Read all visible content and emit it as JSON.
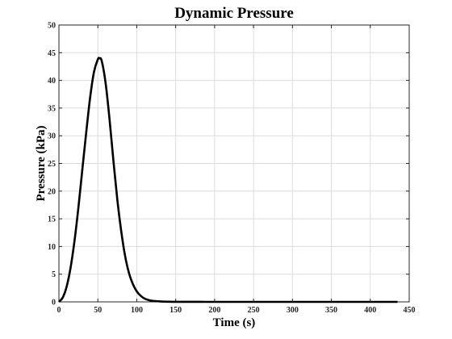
{
  "chart_data": {
    "type": "line",
    "title": "Dynamic Pressure",
    "xlabel": "Time (s)",
    "ylabel": "Pressure (kPa)",
    "xlim": [
      0,
      450
    ],
    "ylim": [
      0,
      50
    ],
    "xticks": [
      0,
      50,
      100,
      150,
      200,
      250,
      300,
      350,
      400,
      450
    ],
    "yticks": [
      0,
      5,
      10,
      15,
      20,
      25,
      30,
      35,
      40,
      45,
      50
    ],
    "grid": true,
    "line_color": "#000000",
    "x": [
      0,
      5,
      10,
      15,
      20,
      25,
      30,
      35,
      40,
      45,
      50,
      52,
      55,
      60,
      65,
      70,
      75,
      80,
      85,
      90,
      95,
      100,
      105,
      110,
      115,
      120,
      130,
      140,
      150,
      200,
      250,
      300,
      350,
      400,
      435
    ],
    "y": [
      0,
      0.8,
      2.8,
      6.2,
      11.0,
      17.0,
      23.8,
      30.5,
      36.8,
      41.5,
      43.8,
      44.0,
      43.5,
      39.5,
      33.0,
      25.5,
      18.5,
      12.8,
      8.3,
      5.2,
      3.2,
      1.9,
      1.1,
      0.6,
      0.35,
      0.2,
      0.08,
      0.03,
      0.01,
      0,
      0,
      0,
      0,
      0,
      0
    ]
  }
}
